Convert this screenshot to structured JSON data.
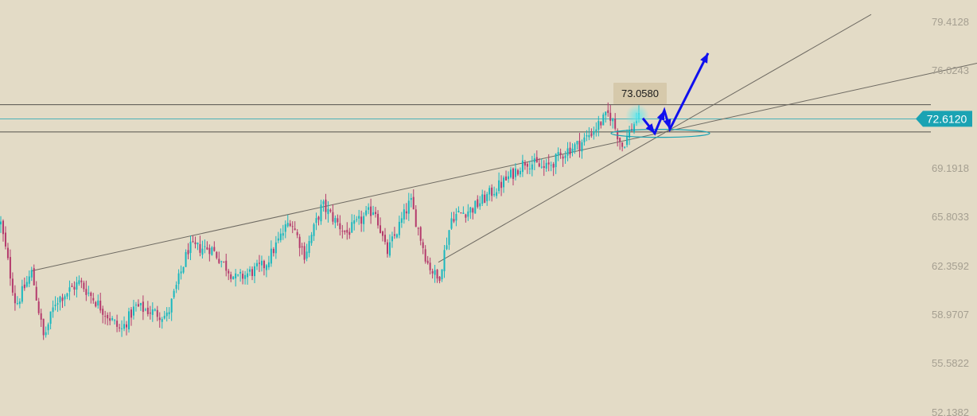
{
  "chart_data": {
    "type": "candlestick",
    "y_axis": {
      "ticks": [
        52.1382,
        55.5822,
        58.9707,
        62.3592,
        65.8033,
        69.1918,
        72.612,
        76.0243,
        79.4128
      ],
      "tick_labels": [
        "52.1382",
        "55.5822",
        "58.9707",
        "62.3592",
        "65.8033",
        "69.1918",
        "",
        "76.0243",
        "79.4128"
      ],
      "ylim": [
        52.1382,
        79.4128
      ],
      "position": "right"
    },
    "current_price": {
      "value": 72.612,
      "label": "72.6120",
      "color": "#1aa3b3"
    },
    "tooltip": {
      "value": 73.058,
      "label": "73.0580"
    },
    "horizontal_levels": [
      73.6,
      71.7
    ],
    "trendlines": [
      {
        "from": [
          40,
          62.0
        ],
        "to": [
          1228,
          76.5
        ]
      },
      {
        "from": [
          551,
          62.6
        ],
        "to": [
          1095,
          79.9
        ]
      }
    ],
    "candles_count": 270,
    "waypoints": [
      [
        0,
        65.6
      ],
      [
        20,
        59.6
      ],
      [
        40,
        61.9
      ],
      [
        55,
        57.3
      ],
      [
        70,
        59.9
      ],
      [
        100,
        61.2
      ],
      [
        152,
        57.8
      ],
      [
        170,
        59.5
      ],
      [
        210,
        58.8
      ],
      [
        237,
        63.6
      ],
      [
        265,
        63.6
      ],
      [
        297,
        61.4
      ],
      [
        333,
        62.4
      ],
      [
        365,
        65.6
      ],
      [
        383,
        63.1
      ],
      [
        405,
        66.6
      ],
      [
        435,
        64.6
      ],
      [
        471,
        66.4
      ],
      [
        486,
        63.2
      ],
      [
        516,
        66.9
      ],
      [
        537,
        62.6
      ],
      [
        551,
        61.3
      ],
      [
        568,
        65.8
      ],
      [
        593,
        66.3
      ],
      [
        635,
        68.3
      ],
      [
        661,
        69.7
      ],
      [
        685,
        69.1
      ],
      [
        712,
        70.4
      ],
      [
        730,
        70.9
      ],
      [
        766,
        73.0
      ],
      [
        782,
        70.7
      ],
      [
        800,
        72.6
      ]
    ],
    "forecast_arrow": {
      "color": "#1010ee",
      "points": [
        [
          808,
          72.65
        ],
        [
          823,
          71.6
        ],
        [
          835,
          73.2
        ],
        [
          842,
          71.9
        ],
        [
          890,
          77.2
        ]
      ]
    },
    "highlight": {
      "ellipse_center": [
        830,
        71.6
      ],
      "glow_center": [
        801,
        72.8
      ]
    },
    "colors": {
      "up": "#18b7bf",
      "down": "#b43a6c",
      "background": "#e3dbc6",
      "line": "#6e6a62"
    }
  }
}
